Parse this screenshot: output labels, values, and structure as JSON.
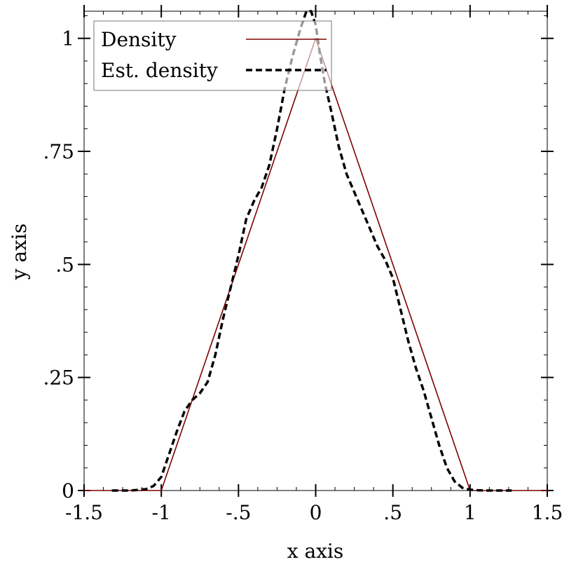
{
  "chart_data": {
    "type": "line",
    "xlabel": "x axis",
    "ylabel": "y axis",
    "xlim": [
      -1.5,
      1.5
    ],
    "ylim": [
      0,
      1.06
    ],
    "x_ticks": [
      {
        "value": -1.5,
        "label": "-1.5"
      },
      {
        "value": -1,
        "label": "-1"
      },
      {
        "value": -0.5,
        "label": "-.5"
      },
      {
        "value": 0,
        "label": "0"
      },
      {
        "value": 0.5,
        "label": ".5"
      },
      {
        "value": 1,
        "label": "1"
      },
      {
        "value": 1.5,
        "label": "1.5"
      }
    ],
    "y_ticks": [
      {
        "value": 0,
        "label": "0"
      },
      {
        "value": 0.25,
        "label": ".25"
      },
      {
        "value": 0.5,
        "label": ".5"
      },
      {
        "value": 0.75,
        "label": ".75"
      },
      {
        "value": 1,
        "label": "1"
      }
    ],
    "x_minor_step": 0.125,
    "y_minor_step": 0.05,
    "grid": false,
    "legend_position": "top-left",
    "series": [
      {
        "name": "Density",
        "style": "solid",
        "color": "#800000",
        "x": [
          -1.5,
          -1,
          0,
          1,
          1.5
        ],
        "y": [
          0,
          0,
          1,
          0,
          0
        ]
      },
      {
        "name": "Est. density",
        "style": "dashed",
        "color": "#000000",
        "x": [
          -1.32,
          -1.2,
          -1.1,
          -1.05,
          -1.0,
          -0.95,
          -0.9,
          -0.85,
          -0.8,
          -0.75,
          -0.7,
          -0.65,
          -0.6,
          -0.55,
          -0.5,
          -0.45,
          -0.4,
          -0.35,
          -0.3,
          -0.25,
          -0.2,
          -0.15,
          -0.1,
          -0.06,
          -0.03,
          0.0,
          0.03,
          0.06,
          0.1,
          0.15,
          0.2,
          0.25,
          0.3,
          0.35,
          0.4,
          0.45,
          0.5,
          0.55,
          0.6,
          0.65,
          0.7,
          0.75,
          0.8,
          0.85,
          0.9,
          0.95,
          1.0,
          1.05,
          1.1,
          1.2,
          1.27
        ],
        "y": [
          0,
          0,
          0.003,
          0.01,
          0.03,
          0.08,
          0.13,
          0.175,
          0.2,
          0.215,
          0.24,
          0.3,
          0.38,
          0.45,
          0.52,
          0.6,
          0.64,
          0.67,
          0.72,
          0.8,
          0.89,
          0.96,
          1.02,
          1.06,
          1.06,
          1.03,
          0.96,
          0.9,
          0.84,
          0.76,
          0.7,
          0.66,
          0.62,
          0.58,
          0.54,
          0.51,
          0.47,
          0.4,
          0.33,
          0.27,
          0.22,
          0.16,
          0.1,
          0.05,
          0.02,
          0.006,
          0.002,
          0.0005,
          0,
          0,
          0
        ]
      }
    ]
  }
}
